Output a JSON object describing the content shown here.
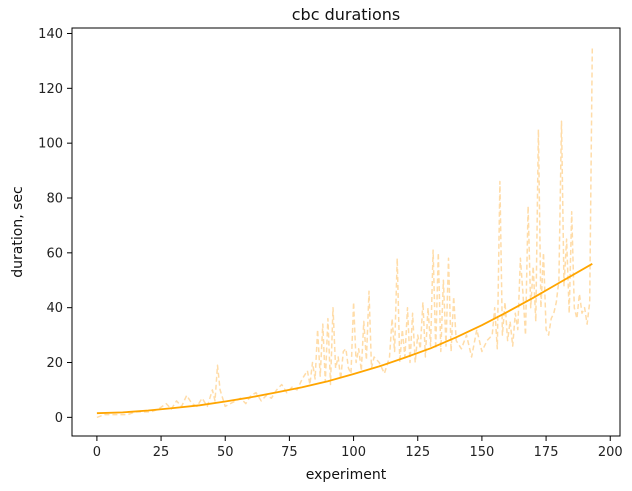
{
  "chart_data": {
    "type": "line",
    "title": "cbc durations",
    "xlabel": "experiment",
    "ylabel": "duration, sec",
    "xlim": [
      -9.7,
      203.8
    ],
    "ylim": [
      -6.8,
      142.0
    ],
    "xticks": [
      0,
      25,
      50,
      75,
      100,
      125,
      150,
      175,
      200
    ],
    "yticks": [
      0,
      20,
      40,
      60,
      80,
      100,
      120,
      140
    ],
    "grid": false,
    "series": [
      {
        "style": "dashed",
        "color": "#ffdca8",
        "x": [
          0,
          3,
          6,
          9,
          12,
          15,
          18,
          21,
          24,
          27,
          29,
          31,
          33,
          35,
          37,
          39,
          41,
          43,
          45,
          46,
          47,
          48,
          50,
          52,
          54,
          56,
          58,
          60,
          62,
          64,
          66,
          68,
          70,
          72,
          74,
          76,
          78,
          80,
          82,
          83,
          84,
          85,
          86,
          87,
          88,
          89,
          90,
          91,
          92,
          93,
          94,
          95,
          96,
          97,
          98,
          99,
          100,
          101,
          102,
          103,
          104,
          105,
          106,
          107,
          108,
          110,
          112,
          114,
          115,
          116,
          117,
          118,
          119,
          120,
          121,
          122,
          123,
          124,
          125,
          126,
          127,
          128,
          129,
          130,
          131,
          132,
          133,
          134,
          135,
          136,
          137,
          138,
          139,
          140,
          142,
          144,
          146,
          148,
          150,
          152,
          154,
          155,
          156,
          157,
          158,
          159,
          160,
          161,
          162,
          163,
          164,
          165,
          166,
          167,
          168,
          169,
          170,
          171,
          172,
          173,
          174,
          175,
          176,
          177,
          178,
          179,
          180,
          181,
          182,
          183,
          184,
          185,
          186,
          187,
          188,
          189,
          190,
          191,
          192,
          193
        ],
        "values": [
          0,
          1,
          1,
          1,
          1,
          2,
          2,
          2,
          3,
          5,
          3,
          6,
          4,
          8,
          5,
          4,
          7,
          4,
          10,
          6,
          19,
          10,
          4,
          5,
          6,
          7,
          5,
          8,
          9,
          6,
          8,
          7,
          10,
          12,
          9,
          11,
          10,
          14,
          17,
          12,
          20,
          14,
          32,
          15,
          34,
          13,
          36,
          12,
          40,
          18,
          22,
          14,
          24,
          25,
          18,
          16,
          42,
          20,
          25,
          17,
          35,
          21,
          46,
          18,
          22,
          20,
          16,
          22,
          36,
          24,
          58,
          20,
          32,
          22,
          40,
          20,
          38,
          20,
          30,
          25,
          42,
          22,
          40,
          26,
          61,
          25,
          60,
          24,
          50,
          26,
          58,
          24,
          44,
          28,
          25,
          30,
          22,
          32,
          24,
          28,
          30,
          40,
          25,
          86,
          30,
          42,
          28,
          35,
          26,
          38,
          32,
          58,
          45,
          30,
          77,
          40,
          55,
          35,
          105,
          40,
          60,
          32,
          30,
          36,
          38,
          42,
          50,
          108,
          48,
          65,
          38,
          75,
          40,
          36,
          45,
          38,
          40,
          34,
          42,
          135
        ],
        "name": ""
      },
      {
        "style": "solid",
        "color": "#ffa500",
        "name": "",
        "x": [
          0,
          10,
          20,
          30,
          40,
          50,
          60,
          70,
          80,
          90,
          100,
          110,
          120,
          130,
          140,
          150,
          160,
          170,
          180,
          193
        ],
        "values": [
          1.5,
          1.8,
          2.5,
          3.4,
          4.4,
          5.8,
          7.3,
          9.1,
          11.0,
          13.2,
          15.8,
          18.6,
          21.8,
          25.2,
          29.2,
          33.6,
          38.5,
          43.6,
          49.0,
          56.0
        ]
      }
    ]
  }
}
